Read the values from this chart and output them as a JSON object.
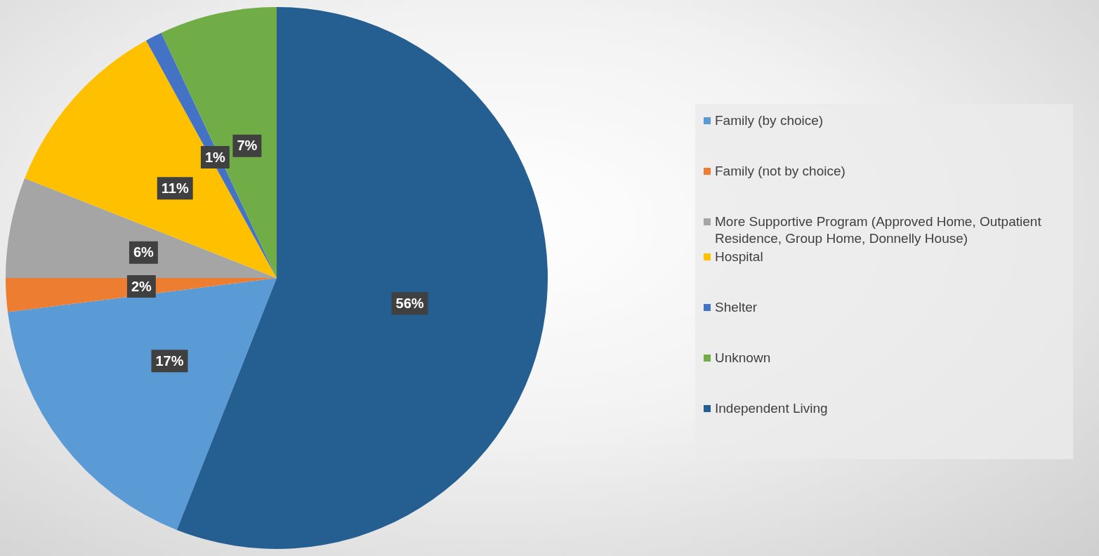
{
  "chart_data": {
    "type": "pie",
    "categories": [
      "Family (by choice)",
      "Family (not by choice)",
      "More Supportive Program (Approved Home, Outpatient Residence, Group Home, Donnelly House)",
      "Hospital",
      "Shelter",
      "Unknown",
      "Independent Living"
    ],
    "values": [
      17,
      2,
      6,
      11,
      1,
      7,
      56
    ],
    "colors": [
      "#5b9bd5",
      "#ed7d31",
      "#a5a5a5",
      "#ffc000",
      "#4472c4",
      "#70ad47",
      "#255e91"
    ],
    "value_labels": [
      "17%",
      "2%",
      "6%",
      "11%",
      "1%",
      "7%",
      "56%"
    ],
    "legend": "right"
  }
}
